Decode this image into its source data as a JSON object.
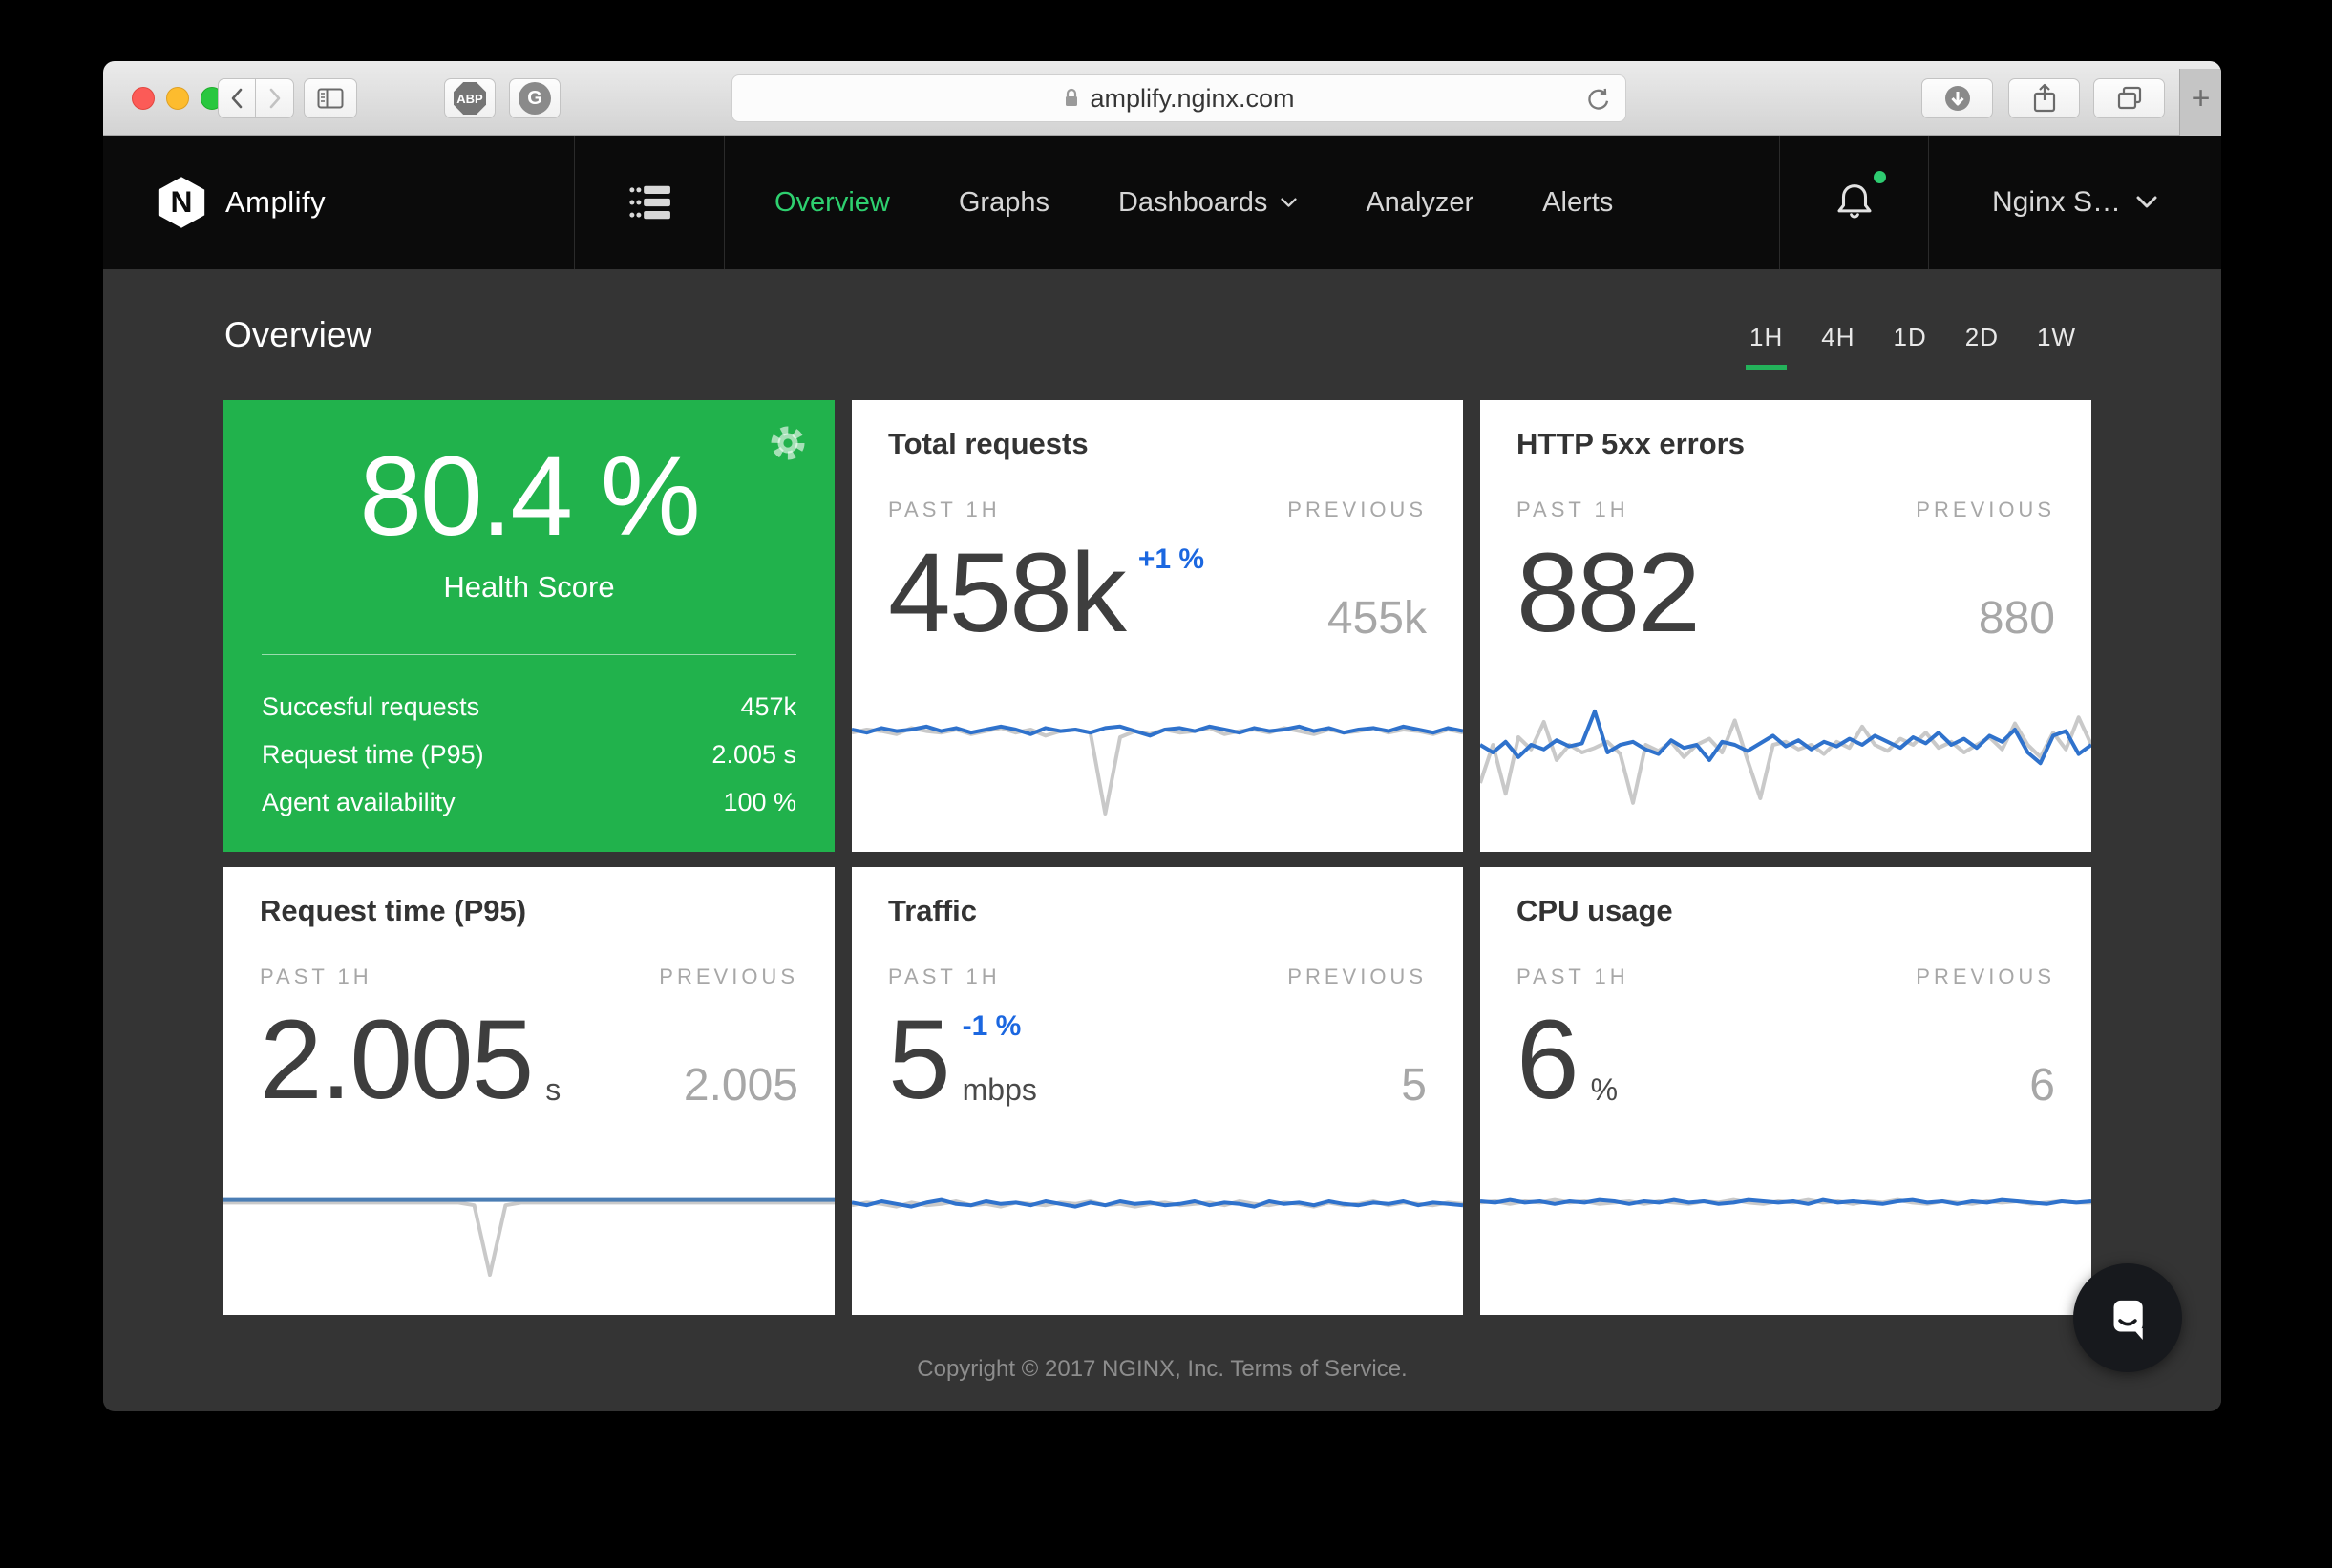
{
  "browser": {
    "url": "amplify.nginx.com",
    "new_tab_label": "+",
    "traffic_lights": [
      {
        "name": "close",
        "color": "#fc5b57"
      },
      {
        "name": "minimize",
        "color": "#fdbc2e"
      },
      {
        "name": "fullscreen",
        "color": "#28c73f"
      }
    ],
    "extensions": [
      {
        "label": "ABP"
      },
      {
        "label": "G"
      }
    ]
  },
  "nav": {
    "brand": "Amplify",
    "items": [
      {
        "label": "Overview",
        "active": true,
        "dropdown": false
      },
      {
        "label": "Graphs",
        "active": false,
        "dropdown": false
      },
      {
        "label": "Dashboards",
        "active": false,
        "dropdown": true
      },
      {
        "label": "Analyzer",
        "active": false,
        "dropdown": false
      },
      {
        "label": "Alerts",
        "active": false,
        "dropdown": false
      }
    ],
    "account_label": "Nginx S…",
    "notification_dot": true
  },
  "page": {
    "title": "Overview",
    "time_ranges": [
      "1H",
      "4H",
      "1D",
      "2D",
      "1W"
    ],
    "active_range": "1H"
  },
  "health": {
    "score": "80.4 %",
    "label": "Health Score",
    "rows": [
      {
        "label": "Succesful requests",
        "value": "457k"
      },
      {
        "label": "Request time (P95)",
        "value": "2.005 s"
      },
      {
        "label": "Agent availability",
        "value": "100 %"
      }
    ]
  },
  "cards_common": {
    "past_label": "PAST 1H",
    "previous_label": "PREVIOUS"
  },
  "metric_cards": [
    {
      "title": "Total requests",
      "value": "458k",
      "change": "+1 %",
      "unit": "",
      "previous": "455k"
    },
    {
      "title": "HTTP 5xx errors",
      "value": "882",
      "change": "",
      "unit": "",
      "previous": "880"
    },
    {
      "title": "Request time (P95)",
      "value": "2.005",
      "change": "",
      "unit": "s",
      "previous": "2.005"
    },
    {
      "title": "Traffic",
      "value": "5",
      "change": "-1 %",
      "unit": "mbps",
      "previous": "5"
    },
    {
      "title": "CPU usage",
      "value": "6",
      "change": "",
      "unit": "%",
      "previous": "6"
    }
  ],
  "chart_data": [
    {
      "name": "Total requests sparkline",
      "type": "line",
      "x": "past 1h, evenly spaced",
      "axes": "hidden",
      "note": "values are normalized vertical positions inside the sparkline strip (0=top, 1=bottom)",
      "series": [
        {
          "name": "previous",
          "color": "#c9c9c9",
          "normalized_y": [
            0.22,
            0.2,
            0.21,
            0.23,
            0.19,
            0.21,
            0.22,
            0.2,
            0.23,
            0.21,
            0.19,
            0.22,
            0.2,
            0.24,
            0.21,
            0.2,
            0.22,
            0.75,
            0.25,
            0.21,
            0.23,
            0.2,
            0.22,
            0.21,
            0.19,
            0.23,
            0.21,
            0.2,
            0.22,
            0.19,
            0.21,
            0.23,
            0.2,
            0.22,
            0.21,
            0.19,
            0.22,
            0.2,
            0.21,
            0.23,
            0.2,
            0.22
          ]
        },
        {
          "name": "current",
          "color": "#2f72cc",
          "normalized_y": [
            0.2,
            0.22,
            0.19,
            0.21,
            0.2,
            0.18,
            0.21,
            0.19,
            0.22,
            0.2,
            0.18,
            0.2,
            0.23,
            0.19,
            0.21,
            0.2,
            0.22,
            0.19,
            0.18,
            0.21,
            0.24,
            0.2,
            0.19,
            0.21,
            0.18,
            0.2,
            0.22,
            0.19,
            0.21,
            0.2,
            0.18,
            0.21,
            0.19,
            0.22,
            0.2,
            0.19,
            0.21,
            0.18,
            0.2,
            0.22,
            0.19,
            0.21
          ]
        }
      ]
    },
    {
      "name": "HTTP 5xx errors sparkline",
      "type": "line",
      "x": "past 1h, evenly spaced",
      "axes": "hidden",
      "note": "values are normalized vertical positions inside the sparkline strip (0=top, 1=bottom)",
      "series": [
        {
          "name": "previous",
          "color": "#c9c9c9",
          "normalized_y": [
            0.55,
            0.3,
            0.62,
            0.25,
            0.33,
            0.15,
            0.4,
            0.3,
            0.35,
            0.32,
            0.28,
            0.36,
            0.68,
            0.3,
            0.34,
            0.28,
            0.38,
            0.3,
            0.26,
            0.35,
            0.14,
            0.4,
            0.65,
            0.3,
            0.28,
            0.33,
            0.3,
            0.36,
            0.28,
            0.32,
            0.18,
            0.3,
            0.34,
            0.26,
            0.3,
            0.22,
            0.32,
            0.28,
            0.35,
            0.3,
            0.25,
            0.33,
            0.16,
            0.3,
            0.38,
            0.22,
            0.33,
            0.12,
            0.3
          ]
        },
        {
          "name": "current",
          "color": "#2f72cc",
          "normalized_y": [
            0.3,
            0.35,
            0.28,
            0.38,
            0.3,
            0.33,
            0.27,
            0.31,
            0.29,
            0.08,
            0.35,
            0.3,
            0.28,
            0.33,
            0.36,
            0.27,
            0.32,
            0.3,
            0.4,
            0.28,
            0.3,
            0.34,
            0.29,
            0.24,
            0.31,
            0.27,
            0.33,
            0.28,
            0.31,
            0.26,
            0.3,
            0.24,
            0.28,
            0.32,
            0.25,
            0.29,
            0.22,
            0.3,
            0.26,
            0.32,
            0.24,
            0.28,
            0.2,
            0.35,
            0.42,
            0.24,
            0.21,
            0.36,
            0.3
          ]
        }
      ]
    },
    {
      "name": "Request time (P95) sparkline",
      "type": "line",
      "x": "past 1h, evenly spaced",
      "axes": "hidden",
      "note": "values are normalized vertical positions inside the sparkline strip (0=top, 1=bottom)",
      "series": [
        {
          "name": "previous",
          "color": "#c9c9c9",
          "normalized_y": [
            0.16,
            0.16,
            0.16,
            0.16,
            0.16,
            0.16,
            0.16,
            0.16,
            0.16,
            0.16,
            0.16,
            0.16,
            0.16,
            0.16,
            0.16,
            0.16,
            0.18,
            0.7,
            0.18,
            0.16,
            0.16,
            0.16,
            0.16,
            0.16,
            0.16,
            0.16,
            0.16,
            0.16,
            0.16,
            0.16,
            0.16,
            0.16,
            0.16,
            0.16,
            0.16,
            0.16,
            0.16,
            0.16,
            0.16,
            0.16
          ]
        },
        {
          "name": "current",
          "color": "#4a7db4",
          "normalized_y": [
            0.14,
            0.14,
            0.14,
            0.14,
            0.14,
            0.14,
            0.14,
            0.14,
            0.14,
            0.14,
            0.14,
            0.14,
            0.14,
            0.14,
            0.14,
            0.14,
            0.14,
            0.14,
            0.14,
            0.14,
            0.14,
            0.14,
            0.14,
            0.14,
            0.14,
            0.14,
            0.14,
            0.14,
            0.14,
            0.14,
            0.14,
            0.14,
            0.14,
            0.14,
            0.14,
            0.14,
            0.14,
            0.14,
            0.14,
            0.14
          ]
        }
      ]
    },
    {
      "name": "Traffic sparkline",
      "type": "line",
      "x": "past 1h, evenly spaced",
      "axes": "hidden",
      "note": "values are normalized vertical positions inside the sparkline strip (0=top, 1=bottom)",
      "series": [
        {
          "name": "previous",
          "color": "#c9c9c9",
          "normalized_y": [
            0.18,
            0.16,
            0.17,
            0.19,
            0.16,
            0.18,
            0.17,
            0.15,
            0.18,
            0.17,
            0.19,
            0.16,
            0.17,
            0.18,
            0.16,
            0.17,
            0.15,
            0.18,
            0.17,
            0.19,
            0.17,
            0.16,
            0.18,
            0.17,
            0.16,
            0.18,
            0.15,
            0.17,
            0.18,
            0.16,
            0.17,
            0.19,
            0.16,
            0.18,
            0.17,
            0.15,
            0.18,
            0.16,
            0.17,
            0.18,
            0.16,
            0.17
          ]
        },
        {
          "name": "current",
          "color": "#2f72cc",
          "normalized_y": [
            0.16,
            0.18,
            0.15,
            0.17,
            0.19,
            0.16,
            0.14,
            0.17,
            0.18,
            0.15,
            0.17,
            0.16,
            0.18,
            0.15,
            0.17,
            0.19,
            0.16,
            0.18,
            0.15,
            0.17,
            0.16,
            0.18,
            0.17,
            0.15,
            0.18,
            0.16,
            0.17,
            0.19,
            0.15,
            0.17,
            0.16,
            0.18,
            0.15,
            0.17,
            0.18,
            0.16,
            0.17,
            0.15,
            0.18,
            0.16,
            0.17,
            0.18
          ]
        }
      ]
    },
    {
      "name": "CPU usage sparkline",
      "type": "line",
      "x": "past 1h, evenly spaced",
      "axes": "hidden",
      "note": "values are normalized vertical positions inside the sparkline strip (0=top, 1=bottom)",
      "series": [
        {
          "name": "previous",
          "color": "#c9c9c9",
          "normalized_y": [
            0.16,
            0.15,
            0.17,
            0.15,
            0.16,
            0.14,
            0.16,
            0.15,
            0.17,
            0.16,
            0.15,
            0.17,
            0.15,
            0.16,
            0.17,
            0.15,
            0.16,
            0.14,
            0.16,
            0.17,
            0.15,
            0.16,
            0.14,
            0.16,
            0.15,
            0.17,
            0.15,
            0.16,
            0.14,
            0.16,
            0.17,
            0.15,
            0.16,
            0.17,
            0.15,
            0.16,
            0.15,
            0.17,
            0.16,
            0.15,
            0.16,
            0.16
          ]
        },
        {
          "name": "current",
          "color": "#2f72cc",
          "normalized_y": [
            0.15,
            0.16,
            0.14,
            0.16,
            0.15,
            0.17,
            0.15,
            0.16,
            0.14,
            0.15,
            0.17,
            0.15,
            0.16,
            0.14,
            0.16,
            0.15,
            0.17,
            0.16,
            0.14,
            0.15,
            0.16,
            0.15,
            0.17,
            0.14,
            0.16,
            0.15,
            0.16,
            0.17,
            0.15,
            0.14,
            0.16,
            0.15,
            0.17,
            0.15,
            0.16,
            0.14,
            0.15,
            0.16,
            0.17,
            0.15,
            0.16,
            0.15
          ]
        }
      ]
    }
  ],
  "footer": {
    "copyright": "Copyright © 2017 NGINX, Inc.",
    "terms": "Terms of Service."
  },
  "colors": {
    "brand_green": "#21b24c",
    "nav_active_green": "#2ed06f",
    "range_underline_green": "#23b25a",
    "accent_blue": "#1b67e0",
    "spark_current_blue": "#2f72cc",
    "spark_previous_gray": "#c9c9c9",
    "content_bg": "#343434",
    "navbar_bg": "#0b0b0b"
  }
}
